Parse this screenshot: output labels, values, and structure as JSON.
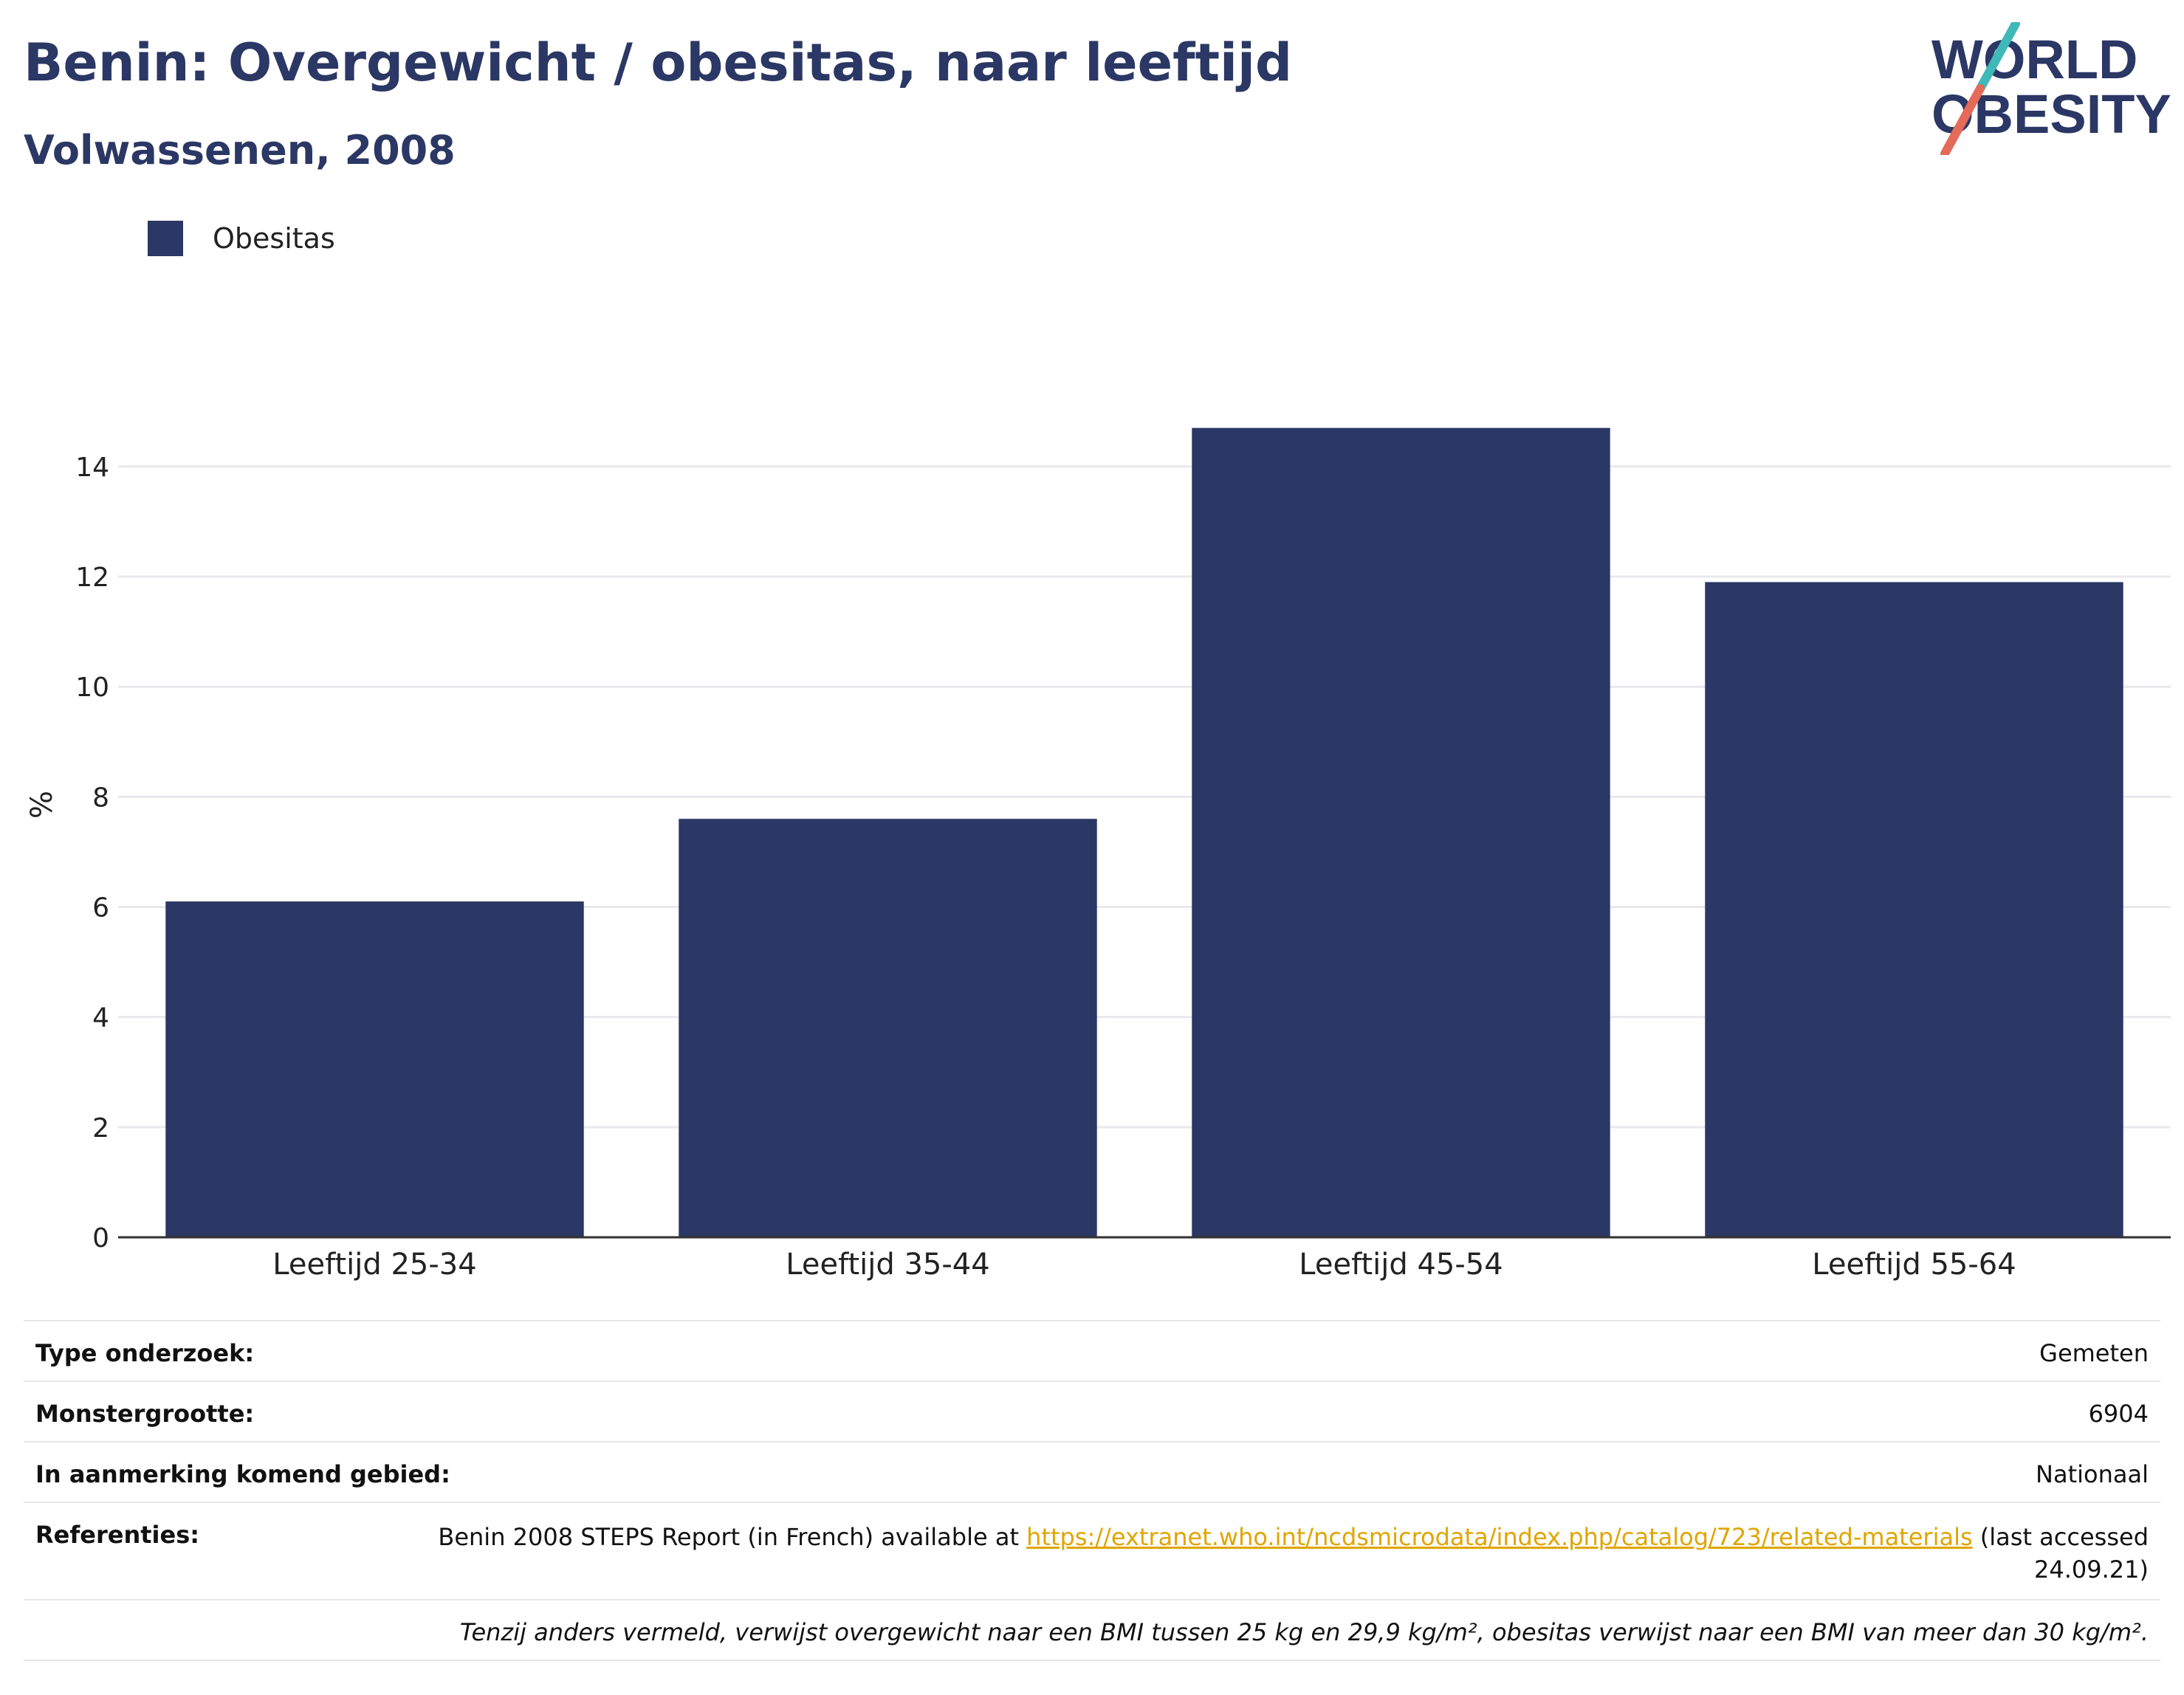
{
  "header": {
    "title": "Benin: Overgewicht / obesitas, naar leeftijd",
    "subtitle": "Volwassenen, 2008"
  },
  "logo": {
    "line1": "WORLD",
    "line2": "OBESITY",
    "text_color": "#2b3764",
    "slash_top_color": "#3fb8b8",
    "slash_bottom_color": "#e46a5a"
  },
  "colors": {
    "bar": "#2b3764",
    "grid": "#e8e8ee",
    "axis": "#333333"
  },
  "chart_data": {
    "type": "bar",
    "categories": [
      "Leeftijd 25-34",
      "Leeftijd 35-44",
      "Leeftijd 45-54",
      "Leeftijd 55-64"
    ],
    "series": [
      {
        "name": "Obesitas",
        "values": [
          6.1,
          7.6,
          14.7,
          11.9
        ]
      }
    ],
    "ylabel": "%",
    "ylim": [
      0,
      15.5
    ],
    "yticks": [
      0,
      2,
      4,
      6,
      8,
      10,
      12,
      14
    ],
    "grid": true,
    "legend_position": "top-left"
  },
  "info": {
    "survey_type_label": "Type onderzoek:",
    "survey_type_value": "Gemeten",
    "sample_size_label": "Monstergrootte:",
    "sample_size_value": "6904",
    "area_label": "In aanmerking komend gebied:",
    "area_value": "Nationaal",
    "references_label": "Referenties:",
    "references_text_before": "Benin 2008 STEPS Report (in French) available at ",
    "references_link": "https://extranet.who.int/ncdsmicrodata/index.php/catalog/723/related-materials",
    "references_text_after": " (last accessed 24.09.21)",
    "note": "Tenzij anders vermeld, verwijst overgewicht naar een BMI tussen 25 kg en 29,9 kg/m², obesitas verwijst naar een BMI van meer dan 30 kg/m²."
  }
}
